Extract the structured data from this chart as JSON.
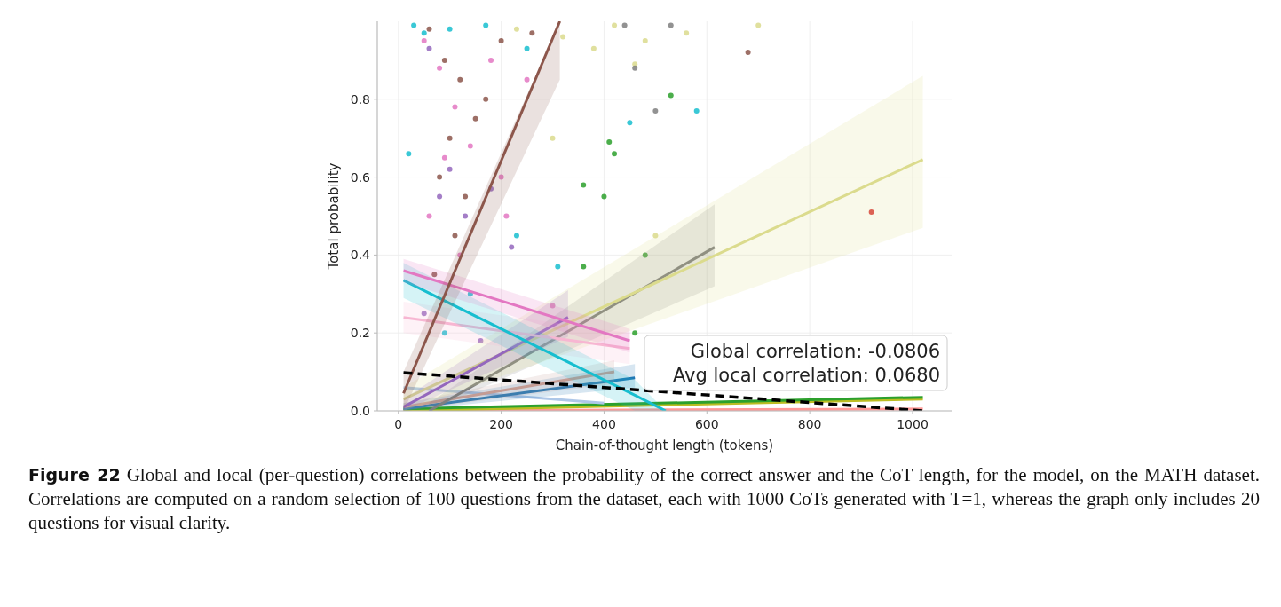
{
  "chart_data": {
    "type": "scatter",
    "xlabel": "Chain-of-thought length (tokens)",
    "ylabel": "Total probability",
    "xlim": [
      -41,
      1076
    ],
    "xticks": [
      0,
      200,
      400,
      600,
      800,
      1000
    ],
    "ylim": [
      0,
      1.0
    ],
    "yticks": [
      {
        "value": 0.0,
        "label": "0.0"
      },
      0.2,
      0.4,
      0.6,
      0.8
    ],
    "grid": true,
    "series": [
      {
        "marker": "circle",
        "color": "#8c564b",
        "x": [
          60,
          90,
          120,
          100,
          150,
          80,
          200,
          130,
          260,
          110,
          170,
          70,
          680
        ],
        "values": [
          0.98,
          0.9,
          0.85,
          0.7,
          0.75,
          0.6,
          0.95,
          0.55,
          0.97,
          0.45,
          0.8,
          0.35,
          0.92
        ]
      },
      {
        "marker": "circle",
        "color": "#e377c2",
        "x": [
          50,
          80,
          110,
          90,
          140,
          60,
          180,
          120,
          200,
          210,
          250,
          300
        ],
        "values": [
          0.95,
          0.88,
          0.78,
          0.65,
          0.68,
          0.5,
          0.9,
          0.4,
          0.6,
          0.5,
          0.85,
          0.27
        ]
      },
      {
        "marker": "circle",
        "color": "#17becf",
        "x": [
          30,
          50,
          20,
          100,
          170,
          140,
          230,
          310,
          90,
          450,
          580,
          250
        ],
        "values": [
          0.99,
          0.97,
          0.66,
          0.98,
          0.99,
          0.3,
          0.45,
          0.37,
          0.2,
          0.74,
          0.77,
          0.93
        ]
      },
      {
        "marker": "circle",
        "color": "#dbdb8d",
        "x": [
          230,
          320,
          420,
          480,
          560,
          700,
          300,
          380,
          500,
          460
        ],
        "values": [
          0.98,
          0.96,
          0.99,
          0.95,
          0.97,
          0.99,
          0.7,
          0.93,
          0.45,
          0.89
        ]
      },
      {
        "marker": "circle",
        "color": "#9467bd",
        "x": [
          60,
          100,
          130,
          80,
          180,
          50,
          160,
          220
        ],
        "values": [
          0.93,
          0.62,
          0.5,
          0.55,
          0.57,
          0.25,
          0.18,
          0.42
        ]
      },
      {
        "marker": "circle",
        "color": "#2ca02c",
        "x": [
          410,
          420,
          400,
          360,
          480,
          530,
          360,
          460
        ],
        "values": [
          0.69,
          0.66,
          0.55,
          0.37,
          0.4,
          0.81,
          0.58,
          0.2
        ]
      },
      {
        "marker": "circle",
        "color": "#7f7f7f",
        "x": [
          460,
          440,
          500,
          530
        ],
        "values": [
          0.88,
          0.99,
          0.77,
          0.99
        ]
      },
      {
        "marker": "circle",
        "color": "#d62728",
        "x": [
          920
        ],
        "values": [
          0.51
        ]
      },
      {
        "type": "line",
        "color": "#ff9896",
        "x": [
          10,
          1020
        ],
        "values": [
          0.0,
          0.005
        ]
      },
      {
        "type": "line",
        "color": "#bcbd22",
        "x": [
          10,
          1020
        ],
        "values": [
          0.0,
          0.03
        ]
      },
      {
        "type": "line",
        "color": "#2ca02c",
        "x": [
          10,
          1020
        ],
        "values": [
          0.005,
          0.035
        ]
      },
      {
        "type": "line",
        "color": "#aec7e8",
        "x": [
          10,
          400
        ],
        "values": [
          0.06,
          0.02
        ]
      },
      {
        "type": "line",
        "color": "#1f77b4",
        "x": [
          10,
          460
        ],
        "values": [
          0.005,
          0.085
        ],
        "lower": [
          0.0,
          0.06
        ],
        "upper": [
          0.02,
          0.12
        ]
      },
      {
        "type": "line",
        "color": "#c49c94",
        "x": [
          10,
          420
        ],
        "values": [
          0.01,
          0.1
        ],
        "lower": [
          0.0,
          0.07
        ],
        "upper": [
          0.02,
          0.13
        ]
      },
      {
        "type": "line",
        "color": "#7f7f7f",
        "x": [
          60,
          615
        ],
        "values": [
          0.0,
          0.42
        ],
        "lower": [
          0.0,
          0.32
        ],
        "upper": [
          0.02,
          0.53
        ]
      },
      {
        "type": "line",
        "color": "#dbdb8d",
        "x": [
          10,
          1020
        ],
        "values": [
          0.03,
          0.645
        ],
        "lower": [
          0.0,
          0.47
        ],
        "upper": [
          0.06,
          0.86
        ]
      },
      {
        "type": "line",
        "color": "#9467bd",
        "x": [
          10,
          330
        ],
        "values": [
          0.01,
          0.24
        ],
        "lower": [
          0.0,
          0.19
        ],
        "upper": [
          0.03,
          0.31
        ]
      },
      {
        "type": "line",
        "color": "#f7b6d2",
        "x": [
          10,
          450
        ],
        "values": [
          0.24,
          0.16
        ],
        "lower": [
          0.2,
          0.12
        ],
        "upper": [
          0.28,
          0.2
        ]
      },
      {
        "type": "line",
        "color": "#17becf",
        "x": [
          10,
          460,
          520
        ],
        "values": [
          0.335,
          0.04,
          0.0
        ],
        "lower": [
          0.29,
          0.0,
          0.0
        ],
        "upper": [
          0.38,
          0.08,
          0.0
        ]
      },
      {
        "type": "line",
        "color": "#e377c2",
        "x": [
          10,
          450
        ],
        "values": [
          0.36,
          0.18
        ],
        "lower": [
          0.33,
          0.15
        ],
        "upper": [
          0.39,
          0.21
        ]
      },
      {
        "type": "line",
        "color": "#8c564b",
        "x": [
          10,
          314
        ],
        "values": [
          0.045,
          1.0
        ],
        "lower": [
          0.0,
          0.85
        ],
        "upper": [
          0.1,
          1.0
        ]
      },
      {
        "type": "line",
        "color": "#000000",
        "line_style": "dashed",
        "x": [
          10,
          1020
        ],
        "values": [
          0.098,
          0.0
        ]
      }
    ],
    "annotations": [
      "Global correlation: -0.0806",
      "Avg local correlation: 0.0680",
      "Figure 22 Global and local (per-question) correlations between the probability of the correct answer and the CoT length, for the model, on the MATH dataset. Correlations are computed on a random selection of 100 questions from the dataset, each with 1000 CoTs generated with T=1, whereas the graph only includes 20 questions for visual clarity."
    ]
  }
}
